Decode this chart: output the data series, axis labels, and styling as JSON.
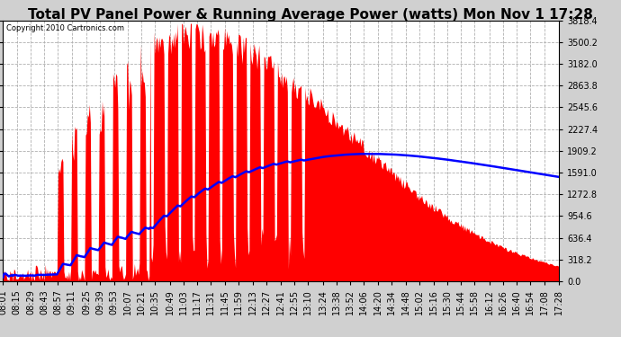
{
  "title": "Total PV Panel Power & Running Average Power (watts) Mon Nov 1 17:28",
  "copyright": "Copyright 2010 Cartronics.com",
  "y_max": 3818.4,
  "y_min": 0.0,
  "y_ticks": [
    0.0,
    318.2,
    636.4,
    954.6,
    1272.8,
    1591.0,
    1909.2,
    2227.4,
    2545.6,
    2863.8,
    3182.0,
    3500.2,
    3818.4
  ],
  "x_labels": [
    "08:01",
    "08:15",
    "08:29",
    "08:43",
    "08:57",
    "09:11",
    "09:25",
    "09:39",
    "09:53",
    "10:07",
    "10:21",
    "10:35",
    "10:49",
    "11:03",
    "11:17",
    "11:31",
    "11:45",
    "11:59",
    "12:13",
    "12:27",
    "12:41",
    "12:55",
    "13:10",
    "13:24",
    "13:38",
    "13:52",
    "14:06",
    "14:20",
    "14:34",
    "14:48",
    "15:02",
    "15:16",
    "15:30",
    "15:44",
    "15:58",
    "16:12",
    "16:26",
    "16:40",
    "16:54",
    "17:08",
    "17:28"
  ],
  "bg_color": "#d0d0d0",
  "plot_bg_color": "#ffffff",
  "fill_color": "#ff0000",
  "line_color": "#0000ff",
  "grid_color": "#b0b0b0",
  "title_fontsize": 11,
  "tick_fontsize": 7,
  "copyright_fontsize": 6
}
